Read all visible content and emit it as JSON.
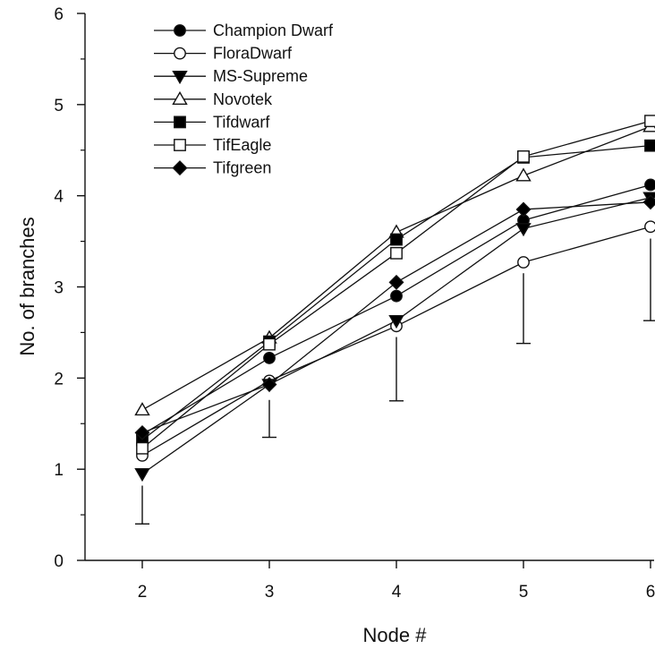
{
  "chart_data": {
    "type": "line",
    "xlabel": "Node #",
    "ylabel": "No. of branches",
    "x": [
      2,
      3,
      4,
      5,
      6
    ],
    "xlim": [
      1.55,
      6.0
    ],
    "ylim": [
      0,
      6
    ],
    "x_ticks": [
      "2",
      "3",
      "4",
      "5",
      "6"
    ],
    "y_ticks": [
      "0",
      "1",
      "2",
      "3",
      "4",
      "5",
      "6"
    ],
    "grid": false,
    "legend_position": "top-left",
    "series": [
      {
        "name": "Champion Dwarf",
        "marker": "circle",
        "filled": true,
        "values": [
          1.38,
          2.22,
          2.9,
          3.73,
          4.12
        ]
      },
      {
        "name": "FloraDwarf",
        "marker": "circle",
        "filled": false,
        "values": [
          1.15,
          1.97,
          2.57,
          3.27,
          3.66
        ]
      },
      {
        "name": "MS-Supreme",
        "marker": "triangle-down",
        "filled": true,
        "values": [
          0.95,
          1.93,
          2.63,
          3.64,
          3.98
        ]
      },
      {
        "name": "Novotek",
        "marker": "triangle-up",
        "filled": false,
        "values": [
          1.65,
          2.44,
          3.6,
          4.22,
          4.76
        ]
      },
      {
        "name": "Tifdwarf",
        "marker": "square",
        "filled": true,
        "values": [
          1.32,
          2.4,
          3.52,
          4.42,
          4.55
        ]
      },
      {
        "name": "TifEagle",
        "marker": "square",
        "filled": false,
        "values": [
          1.23,
          2.37,
          3.37,
          4.43,
          4.82
        ]
      },
      {
        "name": "Tifgreen",
        "marker": "diamond",
        "filled": true,
        "values": [
          1.4,
          1.93,
          3.05,
          3.85,
          3.93
        ]
      }
    ],
    "error_bars": [
      {
        "x": 2,
        "from": 0.82,
        "to": 0.4
      },
      {
        "x": 3,
        "from": 1.76,
        "to": 1.35
      },
      {
        "x": 4,
        "from": 2.45,
        "to": 1.75
      },
      {
        "x": 5,
        "from": 3.15,
        "to": 2.38
      },
      {
        "x": 6,
        "from": 3.53,
        "to": 2.63
      }
    ],
    "colors": {
      "line": "#111111",
      "fill": "#000000",
      "background": "#ffffff"
    }
  }
}
